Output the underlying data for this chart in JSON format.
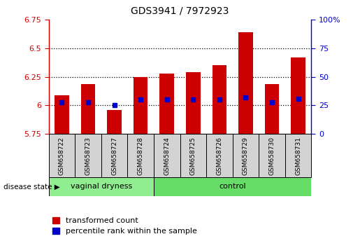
{
  "title": "GDS3941 / 7972923",
  "samples": [
    "GSM658722",
    "GSM658723",
    "GSM658727",
    "GSM658728",
    "GSM658724",
    "GSM658725",
    "GSM658726",
    "GSM658729",
    "GSM658730",
    "GSM658731"
  ],
  "bar_values": [
    6.09,
    6.19,
    5.96,
    6.25,
    6.28,
    6.29,
    6.35,
    6.64,
    6.19,
    6.42
  ],
  "blue_values": [
    6.03,
    6.03,
    6.0,
    6.05,
    6.05,
    6.05,
    6.05,
    6.07,
    6.03,
    6.06
  ],
  "bar_bottom": 5.75,
  "ylim_left": [
    5.75,
    6.75
  ],
  "ylim_right": [
    0,
    100
  ],
  "yticks_left": [
    5.75,
    6.0,
    6.25,
    6.5,
    6.75
  ],
  "ytick_labels_left": [
    "5.75",
    "6",
    "6.25",
    "6.5",
    "6.75"
  ],
  "yticks_right": [
    0,
    25,
    50,
    75,
    100
  ],
  "ytick_labels_right": [
    "0",
    "25",
    "50",
    "75",
    "100%"
  ],
  "dotted_lines": [
    6.0,
    6.25,
    6.5
  ],
  "bar_color": "#cc0000",
  "blue_color": "#0000cc",
  "group1_label": "vaginal dryness",
  "group2_label": "control",
  "group1_n": 4,
  "group2_n": 6,
  "group1_color": "#90ee90",
  "group2_color": "#66dd66",
  "legend_bar_label": "transformed count",
  "legend_blue_label": "percentile rank within the sample",
  "disease_state_label": "disease state"
}
